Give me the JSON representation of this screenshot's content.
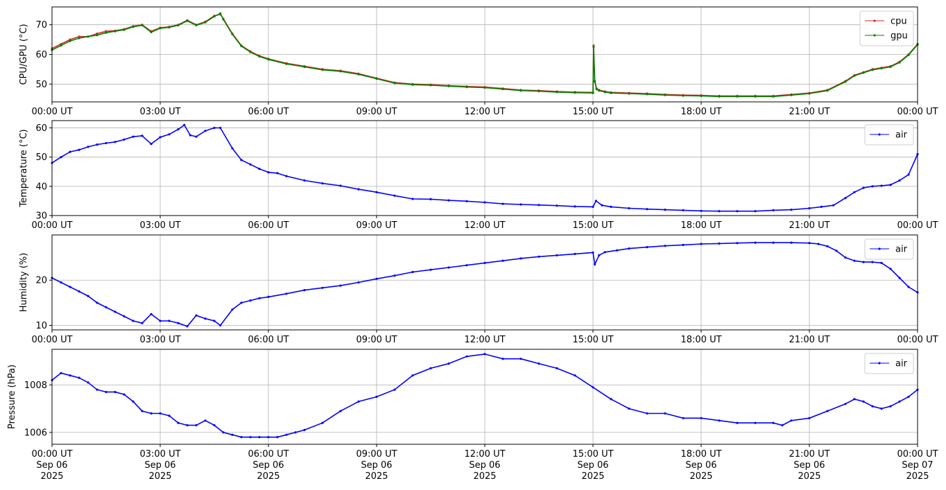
{
  "chart_data": [
    {
      "type": "line",
      "ylabel": "CPU/GPU (°C)",
      "ylim": [
        44,
        76
      ],
      "yticks": [
        50,
        60,
        70
      ],
      "legend": "top-right",
      "x_tick_labels": [
        "00:00 UT",
        "03:00 UT",
        "06:00 UT",
        "09:00 UT",
        "12:00 UT",
        "15:00 UT",
        "18:00 UT",
        "21:00 UT",
        "00:00 UT"
      ],
      "grid": true,
      "series": [
        {
          "name": "cpu",
          "color": "#d62728",
          "x": [
            "2025-09-06 00:00",
            "00:15",
            "00:30",
            "00:45",
            "01:00",
            "01:15",
            "01:30",
            "01:45",
            "02:00",
            "02:15",
            "02:30",
            "02:45",
            "03:00",
            "03:15",
            "03:30",
            "03:45",
            "04:00",
            "04:15",
            "04:30",
            "04:40",
            "04:45",
            "05:00",
            "05:15",
            "05:30",
            "05:45",
            "06:00",
            "06:30",
            "07:00",
            "07:30",
            "08:00",
            "08:30",
            "09:00",
            "09:30",
            "10:00",
            "10:30",
            "11:00",
            "11:30",
            "12:00",
            "12:30",
            "13:00",
            "13:30",
            "14:00",
            "14:30",
            "15:00",
            "15:01",
            "15:03",
            "15:06",
            "15:10",
            "15:20",
            "15:30",
            "16:00",
            "16:30",
            "17:00",
            "17:30",
            "18:00",
            "18:30",
            "19:00",
            "19:30",
            "20:00",
            "20:30",
            "21:00",
            "21:30",
            "22:00",
            "22:15",
            "22:30",
            "22:45",
            "23:00",
            "23:15",
            "23:30",
            "23:45",
            "2025-09-07 00:00"
          ],
          "values": [
            62,
            63.5,
            65,
            66,
            66,
            67,
            67.8,
            68,
            68.5,
            69.5,
            70,
            67.8,
            69,
            69.3,
            70,
            71.5,
            70,
            71,
            73,
            73.5,
            72,
            67,
            63,
            61,
            59.5,
            58.5,
            57,
            56,
            55,
            54.5,
            53.5,
            52,
            50.5,
            50,
            49.8,
            49.5,
            49.2,
            49,
            48.5,
            48,
            47.8,
            47.5,
            47.3,
            47.2,
            63,
            51,
            48.5,
            48,
            47.5,
            47.2,
            47,
            46.8,
            46.5,
            46.3,
            46.2,
            46,
            46,
            46,
            46,
            46.5,
            47,
            48,
            51,
            53,
            54,
            55,
            55.5,
            56,
            57.5,
            60,
            63.5
          ]
        },
        {
          "name": "gpu",
          "color": "#008000",
          "x": [
            "2025-09-06 00:00",
            "00:15",
            "00:30",
            "00:45",
            "01:00",
            "01:15",
            "01:30",
            "01:45",
            "02:00",
            "02:15",
            "02:30",
            "02:45",
            "03:00",
            "03:15",
            "03:30",
            "03:45",
            "04:00",
            "04:15",
            "04:30",
            "04:40",
            "04:45",
            "05:00",
            "05:15",
            "05:30",
            "05:45",
            "06:00",
            "06:30",
            "07:00",
            "07:30",
            "08:00",
            "08:30",
            "09:00",
            "09:30",
            "10:00",
            "10:30",
            "11:00",
            "11:30",
            "12:00",
            "12:30",
            "13:00",
            "13:30",
            "14:00",
            "14:30",
            "15:00",
            "15:01",
            "15:03",
            "15:06",
            "15:10",
            "15:20",
            "15:30",
            "16:00",
            "16:30",
            "17:00",
            "17:30",
            "18:00",
            "18:30",
            "19:00",
            "19:30",
            "20:00",
            "20:30",
            "21:00",
            "21:30",
            "22:00",
            "22:15",
            "22:30",
            "22:45",
            "23:00",
            "23:15",
            "23:30",
            "23:45",
            "2025-09-07 00:00"
          ],
          "values": [
            61.5,
            63,
            64.5,
            65.5,
            66,
            66.5,
            67.3,
            67.8,
            68.3,
            69.3,
            69.8,
            67.5,
            68.8,
            69.1,
            69.8,
            71.3,
            69.8,
            70.8,
            72.8,
            73.8,
            71.8,
            66.8,
            62.8,
            60.8,
            59.3,
            58.3,
            56.8,
            55.8,
            54.8,
            54.3,
            53.3,
            51.8,
            50.3,
            49.8,
            49.6,
            49.3,
            49,
            48.8,
            48.3,
            47.8,
            47.6,
            47.3,
            47.1,
            47,
            62.5,
            50.8,
            48.3,
            47.8,
            47.3,
            47,
            46.8,
            46.6,
            46.3,
            46.1,
            46,
            45.8,
            45.8,
            45.8,
            45.8,
            46.3,
            46.8,
            47.8,
            50.8,
            52.8,
            53.8,
            54.8,
            55.3,
            55.8,
            57.3,
            59.8,
            63.3
          ]
        }
      ]
    },
    {
      "type": "line",
      "ylabel": "Temperature (°C)",
      "ylim": [
        30,
        62.5
      ],
      "yticks": [
        30,
        40,
        50,
        60
      ],
      "legend": "top-right",
      "x_tick_labels": [
        "00:00 UT",
        "03:00 UT",
        "06:00 UT",
        "09:00 UT",
        "12:00 UT",
        "15:00 UT",
        "18:00 UT",
        "21:00 UT",
        "00:00 UT"
      ],
      "grid": true,
      "series": [
        {
          "name": "air",
          "color": "#0000ff",
          "x": [
            "2025-09-06 00:00",
            "00:15",
            "00:30",
            "00:45",
            "01:00",
            "01:15",
            "01:30",
            "01:45",
            "02:00",
            "02:15",
            "02:30",
            "02:45",
            "03:00",
            "03:15",
            "03:30",
            "03:40",
            "03:50",
            "04:00",
            "04:15",
            "04:30",
            "04:40",
            "05:00",
            "05:15",
            "05:30",
            "05:45",
            "06:00",
            "06:15",
            "06:30",
            "07:00",
            "07:30",
            "08:00",
            "08:30",
            "09:00",
            "09:30",
            "10:00",
            "10:30",
            "11:00",
            "11:30",
            "12:00",
            "12:30",
            "13:00",
            "13:30",
            "14:00",
            "14:30",
            "15:00",
            "15:05",
            "15:15",
            "15:30",
            "16:00",
            "16:30",
            "17:00",
            "17:30",
            "18:00",
            "18:30",
            "19:00",
            "19:30",
            "20:00",
            "20:30",
            "21:00",
            "21:20",
            "21:40",
            "22:00",
            "22:15",
            "22:30",
            "22:45",
            "23:00",
            "23:15",
            "23:30",
            "23:45",
            "2025-09-07 00:00"
          ],
          "values": [
            48,
            50,
            51.8,
            52.5,
            53.5,
            54.3,
            54.8,
            55.2,
            56,
            57,
            57.3,
            54.5,
            56.8,
            57.8,
            59.5,
            61,
            57.5,
            57,
            59,
            60,
            60,
            53,
            49,
            47.5,
            46,
            44.8,
            44.5,
            43.5,
            42,
            41,
            40.2,
            39,
            38,
            36.8,
            35.7,
            35.6,
            35.2,
            34.9,
            34.5,
            34,
            33.8,
            33.6,
            33.4,
            33.1,
            33,
            35,
            33.5,
            33,
            32.5,
            32.2,
            32,
            31.8,
            31.6,
            31.5,
            31.5,
            31.5,
            31.8,
            32,
            32.5,
            33,
            33.5,
            36,
            38,
            39.5,
            40,
            40.2,
            40.5,
            42,
            44,
            51
          ]
        }
      ]
    },
    {
      "type": "line",
      "ylabel": "Humidity (%)",
      "ylim": [
        9,
        30
      ],
      "yticks": [
        10,
        20
      ],
      "legend": "top-right",
      "x_tick_labels": [
        "00:00 UT",
        "03:00 UT",
        "06:00 UT",
        "09:00 UT",
        "12:00 UT",
        "15:00 UT",
        "18:00 UT",
        "21:00 UT",
        "00:00 UT"
      ],
      "grid": true,
      "series": [
        {
          "name": "air",
          "color": "#0000ff",
          "x": [
            "2025-09-06 00:00",
            "00:15",
            "00:30",
            "00:45",
            "01:00",
            "01:15",
            "01:30",
            "01:45",
            "02:00",
            "02:15",
            "02:30",
            "02:45",
            "03:00",
            "03:15",
            "03:30",
            "03:45",
            "04:00",
            "04:15",
            "04:30",
            "04:40",
            "05:00",
            "05:15",
            "05:30",
            "05:45",
            "06:00",
            "06:30",
            "07:00",
            "07:30",
            "08:00",
            "08:30",
            "09:00",
            "09:30",
            "10:00",
            "10:30",
            "11:00",
            "11:30",
            "12:00",
            "12:30",
            "13:00",
            "13:30",
            "14:00",
            "14:30",
            "15:00",
            "15:03",
            "15:10",
            "15:20",
            "15:40",
            "16:00",
            "16:30",
            "17:00",
            "17:30",
            "18:00",
            "18:30",
            "19:00",
            "19:30",
            "20:00",
            "20:30",
            "21:00",
            "21:15",
            "21:30",
            "21:45",
            "22:00",
            "22:15",
            "22:30",
            "22:45",
            "23:00",
            "23:15",
            "23:30",
            "23:45",
            "2025-09-07 00:00"
          ],
          "values": [
            20.5,
            19.5,
            18.5,
            17.5,
            16.5,
            15,
            14,
            13,
            12,
            11,
            10.5,
            12.5,
            11,
            11,
            10.5,
            9.8,
            12.2,
            11.5,
            11,
            10,
            13.5,
            15,
            15.5,
            16,
            16.3,
            17,
            17.8,
            18.3,
            18.8,
            19.5,
            20.3,
            21,
            21.8,
            22.3,
            22.8,
            23.3,
            23.8,
            24.3,
            24.8,
            25.2,
            25.5,
            25.8,
            26.1,
            23.5,
            25.5,
            26.2,
            26.6,
            27,
            27.3,
            27.6,
            27.8,
            28,
            28.1,
            28.2,
            28.3,
            28.3,
            28.3,
            28.2,
            28,
            27.5,
            26.5,
            25,
            24.3,
            24,
            24,
            23.8,
            22.5,
            20.5,
            18.5,
            17.3
          ]
        }
      ]
    },
    {
      "type": "line",
      "ylabel": "Pressure (hPa)",
      "ylim": [
        1005.5,
        1009.5
      ],
      "yticks": [
        1006,
        1008
      ],
      "legend": "top-right",
      "x_tick_labels": [
        "00:00 UT",
        "03:00 UT",
        "06:00 UT",
        "09:00 UT",
        "12:00 UT",
        "15:00 UT",
        "18:00 UT",
        "21:00 UT",
        "00:00 UT"
      ],
      "x_tick_sublabels": [
        "Sep 06",
        "Sep 06",
        "Sep 06",
        "Sep 06",
        "Sep 06",
        "Sep 06",
        "Sep 06",
        "Sep 06",
        "Sep 07"
      ],
      "x_tick_years": [
        "2025",
        "2025",
        "2025",
        "2025",
        "2025",
        "2025",
        "2025",
        "2025",
        "2025"
      ],
      "grid": true,
      "series": [
        {
          "name": "air",
          "color": "#0000ff",
          "x": [
            "2025-09-06 00:00",
            "00:15",
            "00:30",
            "00:45",
            "01:00",
            "01:15",
            "01:30",
            "01:45",
            "02:00",
            "02:15",
            "02:30",
            "02:45",
            "03:00",
            "03:15",
            "03:30",
            "03:45",
            "04:00",
            "04:15",
            "04:30",
            "04:45",
            "05:00",
            "05:15",
            "05:30",
            "05:45",
            "06:00",
            "06:15",
            "06:30",
            "06:45",
            "07:00",
            "07:30",
            "08:00",
            "08:30",
            "09:00",
            "09:30",
            "10:00",
            "10:30",
            "11:00",
            "11:30",
            "12:00",
            "12:30",
            "13:00",
            "13:30",
            "14:00",
            "14:30",
            "15:00",
            "15:30",
            "16:00",
            "16:30",
            "17:00",
            "17:30",
            "18:00",
            "18:30",
            "19:00",
            "19:30",
            "20:00",
            "20:15",
            "20:30",
            "21:00",
            "21:30",
            "22:00",
            "22:15",
            "22:30",
            "22:45",
            "23:00",
            "23:15",
            "23:30",
            "23:45",
            "2025-09-07 00:00"
          ],
          "values": [
            1008.2,
            1008.5,
            1008.4,
            1008.3,
            1008.1,
            1007.8,
            1007.7,
            1007.7,
            1007.6,
            1007.3,
            1006.9,
            1006.8,
            1006.8,
            1006.7,
            1006.4,
            1006.3,
            1006.3,
            1006.5,
            1006.3,
            1006,
            1005.9,
            1005.8,
            1005.8,
            1005.8,
            1005.8,
            1005.8,
            1005.9,
            1006,
            1006.1,
            1006.4,
            1006.9,
            1007.3,
            1007.5,
            1007.8,
            1008.4,
            1008.7,
            1008.9,
            1009.2,
            1009.3,
            1009.1,
            1009.1,
            1008.9,
            1008.7,
            1008.4,
            1007.9,
            1007.4,
            1007,
            1006.8,
            1006.8,
            1006.6,
            1006.6,
            1006.5,
            1006.4,
            1006.4,
            1006.4,
            1006.3,
            1006.5,
            1006.6,
            1006.9,
            1007.2,
            1007.4,
            1007.3,
            1007.1,
            1007,
            1007.1,
            1007.3,
            1007.5,
            1007.8
          ]
        }
      ]
    }
  ]
}
